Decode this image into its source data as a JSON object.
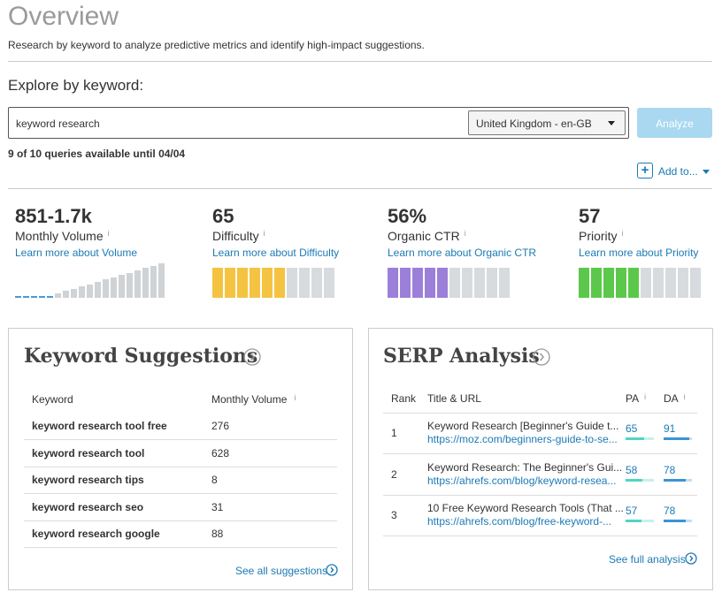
{
  "header": {
    "title": "Overview",
    "subtitle": "Research by keyword to analyze predictive metrics and identify high-impact suggestions."
  },
  "search": {
    "label": "Explore by keyword:",
    "query": "keyword research",
    "locale": "United Kingdom - en-GB",
    "button": "Analyze",
    "quota": "9 of 10 queries available until 04/04",
    "add_to": "Add to..."
  },
  "info_icon": "i",
  "metrics": [
    {
      "value": "851-1.7k",
      "label": "Monthly Volume",
      "link": "Learn more about Volume"
    },
    {
      "value": 65,
      "label": "Difficulty",
      "link": "Learn more about Difficulty",
      "color": "#f5c342"
    },
    {
      "value": "56%",
      "label": "Organic CTR",
      "link": "Learn more about Organic CTR",
      "color": "#9b7fd8"
    },
    {
      "value": 57,
      "label": "Priority",
      "link": "Learn more about Priority",
      "color": "#5cc84b"
    }
  ],
  "suggestions": {
    "title": "Keyword Suggestions",
    "columns": [
      "Keyword",
      "Monthly Volume"
    ],
    "rows": [
      [
        "keyword research tool free",
        276
      ],
      [
        "keyword research tool",
        628
      ],
      [
        "keyword research tips",
        8
      ],
      [
        "keyword research seo",
        31
      ],
      [
        "keyword research google",
        88
      ]
    ],
    "link": "See all suggestions"
  },
  "serp": {
    "title": "SERP Analysis",
    "columns": [
      "Rank",
      "Title & URL",
      "PA",
      "DA"
    ],
    "rows": [
      {
        "rank": 1,
        "title": "Keyword Research [Beginner's Guide t...",
        "url": "https://moz.com/beginners-guide-to-se...",
        "pa": 65,
        "da": 91
      },
      {
        "rank": 2,
        "title": "Keyword Research: The Beginner's Gui...",
        "url": "https://ahrefs.com/blog/keyword-resea...",
        "pa": 58,
        "da": 78
      },
      {
        "rank": 3,
        "title": "10 Free Keyword Research Tools (That ...",
        "url": "https://ahrefs.com/blog/free-keyword-...",
        "pa": 57,
        "da": 78
      }
    ],
    "link": "See full analysis"
  }
}
